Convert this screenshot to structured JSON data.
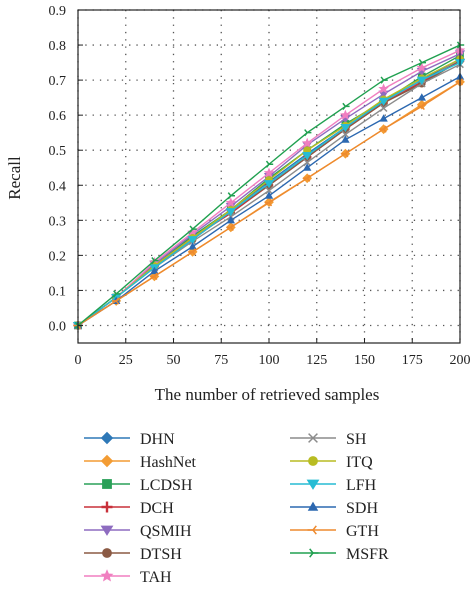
{
  "chart_data": {
    "type": "line",
    "xlabel": "The number of retrieved samples",
    "ylabel": "Recall",
    "xlim": [
      0,
      200
    ],
    "ylim": [
      -0.05,
      0.9
    ],
    "xticks": [
      "0",
      "25",
      "50",
      "75",
      "100",
      "125",
      "150",
      "175",
      "200"
    ],
    "yticks": [
      "0.0",
      "0.1",
      "0.2",
      "0.3",
      "0.4",
      "0.5",
      "0.6",
      "0.7",
      "0.8",
      "0.9"
    ],
    "grid": true,
    "legend_position": "bottom",
    "x": [
      0,
      20,
      40,
      60,
      80,
      100,
      120,
      140,
      160,
      180,
      200
    ],
    "series": [
      {
        "name": "DHN",
        "color": "#2e78b7",
        "marker": "diamond",
        "values": [
          0,
          0.08,
          0.17,
          0.25,
          0.33,
          0.41,
          0.49,
          0.565,
          0.64,
          0.7,
          0.76
        ]
      },
      {
        "name": "HashNet",
        "color": "#f39c34",
        "marker": "diamond",
        "values": [
          0,
          0.07,
          0.14,
          0.21,
          0.28,
          0.352,
          0.42,
          0.49,
          0.56,
          0.63,
          0.695
        ]
      },
      {
        "name": "LCDSH",
        "color": "#2aa058",
        "marker": "square",
        "values": [
          0,
          0.08,
          0.175,
          0.255,
          0.33,
          0.42,
          0.5,
          0.575,
          0.64,
          0.71,
          0.77
        ]
      },
      {
        "name": "DCH",
        "color": "#c8303a",
        "marker": "plus",
        "values": [
          0,
          0.08,
          0.17,
          0.25,
          0.32,
          0.4,
          0.48,
          0.56,
          0.635,
          0.695,
          0.755
        ]
      },
      {
        "name": "QSMIH",
        "color": "#8e6cc0",
        "marker": "triangle-down",
        "values": [
          0,
          0.08,
          0.175,
          0.26,
          0.34,
          0.425,
          0.515,
          0.59,
          0.66,
          0.725,
          0.775
        ]
      },
      {
        "name": "DTSH",
        "color": "#8b5a44",
        "marker": "circle",
        "values": [
          0,
          0.08,
          0.17,
          0.245,
          0.325,
          0.4,
          0.48,
          0.56,
          0.635,
          0.69,
          0.755
        ]
      },
      {
        "name": "TAH",
        "color": "#f07fc0",
        "marker": "star",
        "values": [
          0,
          0.08,
          0.18,
          0.265,
          0.35,
          0.435,
          0.52,
          0.6,
          0.675,
          0.735,
          0.785
        ]
      },
      {
        "name": "SH",
        "color": "#8c8c8c",
        "marker": "x",
        "values": [
          0,
          0.08,
          0.165,
          0.24,
          0.31,
          0.385,
          0.465,
          0.545,
          0.62,
          0.69,
          0.745
        ]
      },
      {
        "name": "ITQ",
        "color": "#b8bc22",
        "marker": "circle",
        "values": [
          0,
          0.08,
          0.17,
          0.25,
          0.33,
          0.415,
          0.5,
          0.57,
          0.645,
          0.705,
          0.76
        ]
      },
      {
        "name": "LFH",
        "color": "#26bcd4",
        "marker": "triangle-down",
        "values": [
          0,
          0.08,
          0.165,
          0.245,
          0.325,
          0.405,
          0.485,
          0.565,
          0.64,
          0.7,
          0.75
        ]
      },
      {
        "name": "SDH",
        "color": "#2c68b0",
        "marker": "triangle-up",
        "values": [
          0,
          0.07,
          0.155,
          0.225,
          0.3,
          0.37,
          0.45,
          0.53,
          0.59,
          0.65,
          0.71
        ]
      },
      {
        "name": "GTH",
        "color": "#ee8a2e",
        "marker": "tri-left",
        "values": [
          0,
          0.07,
          0.14,
          0.21,
          0.28,
          0.35,
          0.42,
          0.49,
          0.56,
          0.625,
          0.695
        ]
      },
      {
        "name": "MSFR",
        "color": "#20a050",
        "marker": "tri-right",
        "values": [
          0,
          0.09,
          0.185,
          0.275,
          0.37,
          0.46,
          0.55,
          0.625,
          0.7,
          0.75,
          0.8
        ]
      }
    ]
  }
}
